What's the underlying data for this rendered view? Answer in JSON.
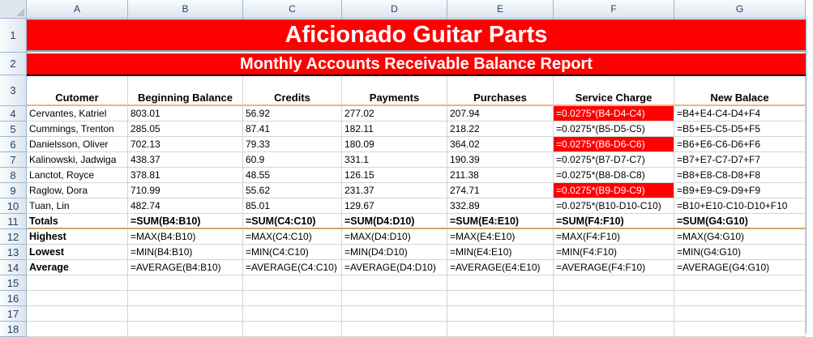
{
  "sheet": {
    "columns": [
      "A",
      "B",
      "C",
      "D",
      "E",
      "F",
      "G"
    ],
    "rows": [
      "1",
      "2",
      "3",
      "4",
      "5",
      "6",
      "7",
      "8",
      "9",
      "10",
      "11",
      "12",
      "13",
      "14",
      "15",
      "16",
      "17",
      "18"
    ],
    "title": "Aficionado Guitar Parts",
    "subtitle": "Monthly Accounts Receivable Balance Report",
    "headers": [
      "Cutomer",
      "Beginning Balance",
      "Credits",
      "Payments",
      "Purchases",
      "Service Charge",
      "New Balace"
    ],
    "data": [
      [
        "Cervantes, Katriel",
        "803.01",
        "56.92",
        "277.02",
        "207.94",
        "=0.0275*(B4-D4-C4)",
        "=B4+E4-C4-D4+F4"
      ],
      [
        "Cummings, Trenton",
        "285.05",
        "87.41",
        "182.11",
        "218.22",
        "=0.0275*(B5-D5-C5)",
        "=B5+E5-C5-D5+F5"
      ],
      [
        "Danielsson, Oliver",
        "702.13",
        "79.33",
        "180.09",
        "364.02",
        "=0.0275*(B6-D6-C6)",
        "=B6+E6-C6-D6+F6"
      ],
      [
        "Kalinowski, Jadwiga",
        "438.37",
        "60.9",
        "331.1",
        "190.39",
        "=0.0275*(B7-D7-C7)",
        "=B7+E7-C7-D7+F7"
      ],
      [
        "Lanctot, Royce",
        "378.81",
        "48.55",
        "126.15",
        "211.38",
        "=0.0275*(B8-D8-C8)",
        "=B8+E8-C8-D8+F8"
      ],
      [
        "Raglow, Dora",
        "710.99",
        "55.62",
        "231.37",
        "274.71",
        "=0.0275*(B9-D9-C9)",
        "=B9+E9-C9-D9+F9"
      ],
      [
        "Tuan, Lin",
        "482.74",
        "85.01",
        "129.67",
        "332.89",
        "=0.0275*(B10-D10-C10)",
        "=B10+E10-C10-D10+F10"
      ]
    ],
    "red_service_rows": [
      true,
      false,
      true,
      false,
      false,
      true,
      false
    ],
    "totals": [
      "Totals",
      "=SUM(B4:B10)",
      "=SUM(C4:C10)",
      "=SUM(D4:D10)",
      "=SUM(E4:E10)",
      "=SUM(F4:F10)",
      "=SUM(G4:G10)"
    ],
    "highest": [
      "Highest",
      "=MAX(B4:B10)",
      "=MAX(C4:C10)",
      "=MAX(D4:D10)",
      "=MAX(E4:E10)",
      "=MAX(F4:F10)",
      "=MAX(G4:G10)"
    ],
    "lowest": [
      "Lowest",
      "=MIN(B4:B10)",
      "=MIN(C4:C10)",
      "=MIN(D4:D10)",
      "=MIN(E4:E10)",
      "=MIN(F4:F10)",
      "=MIN(G4:G10)"
    ],
    "average": [
      "Average",
      "=AVERAGE(B4:B10)",
      "=AVERAGE(C4:C10)",
      "=AVERAGE(D4:D10)",
      "=AVERAGE(E4:E10)",
      "=AVERAGE(F4:F10)",
      "=AVERAGE(G4:G10)"
    ]
  },
  "colors": {
    "title_fill": "#ff0000",
    "title_text": "#ffffff",
    "header_underline": "#f4b183"
  }
}
